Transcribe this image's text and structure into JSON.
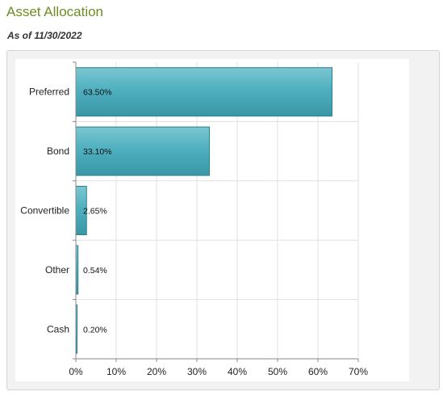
{
  "header": {
    "title": "Asset Allocation",
    "as_of": "As of 11/30/2022"
  },
  "chart_data": {
    "type": "bar",
    "orientation": "horizontal",
    "categories": [
      "Preferred",
      "Bond",
      "Convertible",
      "Other",
      "Cash"
    ],
    "values": [
      63.5,
      33.1,
      2.65,
      0.54,
      0.2
    ],
    "value_labels": [
      "63.50%",
      "33.10%",
      "2.65%",
      "0.54%",
      "0.20%"
    ],
    "xlim": [
      0,
      70
    ],
    "xticks": [
      0,
      10,
      20,
      30,
      40,
      50,
      60,
      70
    ],
    "xtick_labels": [
      "0%",
      "10%",
      "20%",
      "30%",
      "40%",
      "50%",
      "60%",
      "70%"
    ],
    "grid": true,
    "bar_color": "#4fb0bf",
    "bar_color_dark": "#3a96a5",
    "bar_edge_color": "#2e7f8c"
  }
}
